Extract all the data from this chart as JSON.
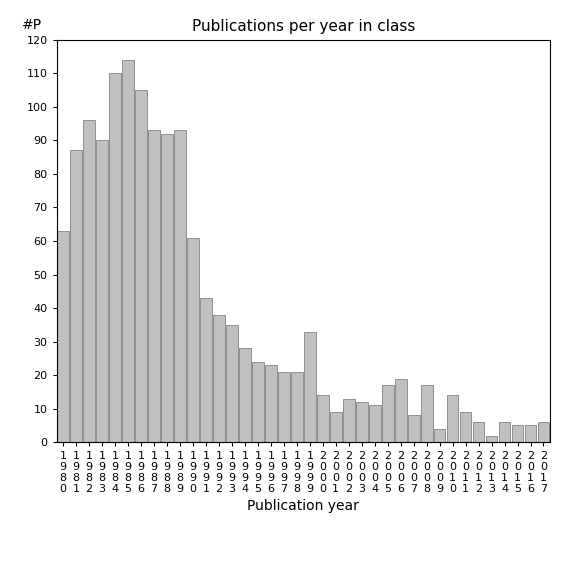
{
  "title": "Publications per year in class",
  "xlabel": "Publication year",
  "ylabel": "#P",
  "bar_color": "#c0c0c0",
  "bar_edgecolor": "#555555",
  "years": [
    1980,
    1981,
    1982,
    1983,
    1984,
    1985,
    1986,
    1987,
    1988,
    1989,
    1990,
    1991,
    1992,
    1993,
    1994,
    1995,
    1996,
    1997,
    1998,
    1999,
    2000,
    2001,
    2002,
    2003,
    2004,
    2005,
    2006,
    2007,
    2008,
    2009,
    2010,
    2011,
    2012,
    2013,
    2014,
    2015,
    2016,
    2017
  ],
  "values": [
    63,
    87,
    96,
    90,
    110,
    114,
    105,
    93,
    92,
    93,
    61,
    43,
    38,
    35,
    28,
    24,
    23,
    21,
    21,
    33,
    14,
    9,
    13,
    12,
    11,
    17,
    19,
    8,
    17,
    4,
    14,
    9,
    6,
    2,
    6,
    5,
    5,
    6
  ],
  "ylim": [
    0,
    120
  ],
  "yticks": [
    0,
    10,
    20,
    30,
    40,
    50,
    60,
    70,
    80,
    90,
    100,
    110,
    120
  ],
  "background_color": "#ffffff",
  "title_fontsize": 11,
  "axis_fontsize": 10,
  "tick_fontsize": 8
}
